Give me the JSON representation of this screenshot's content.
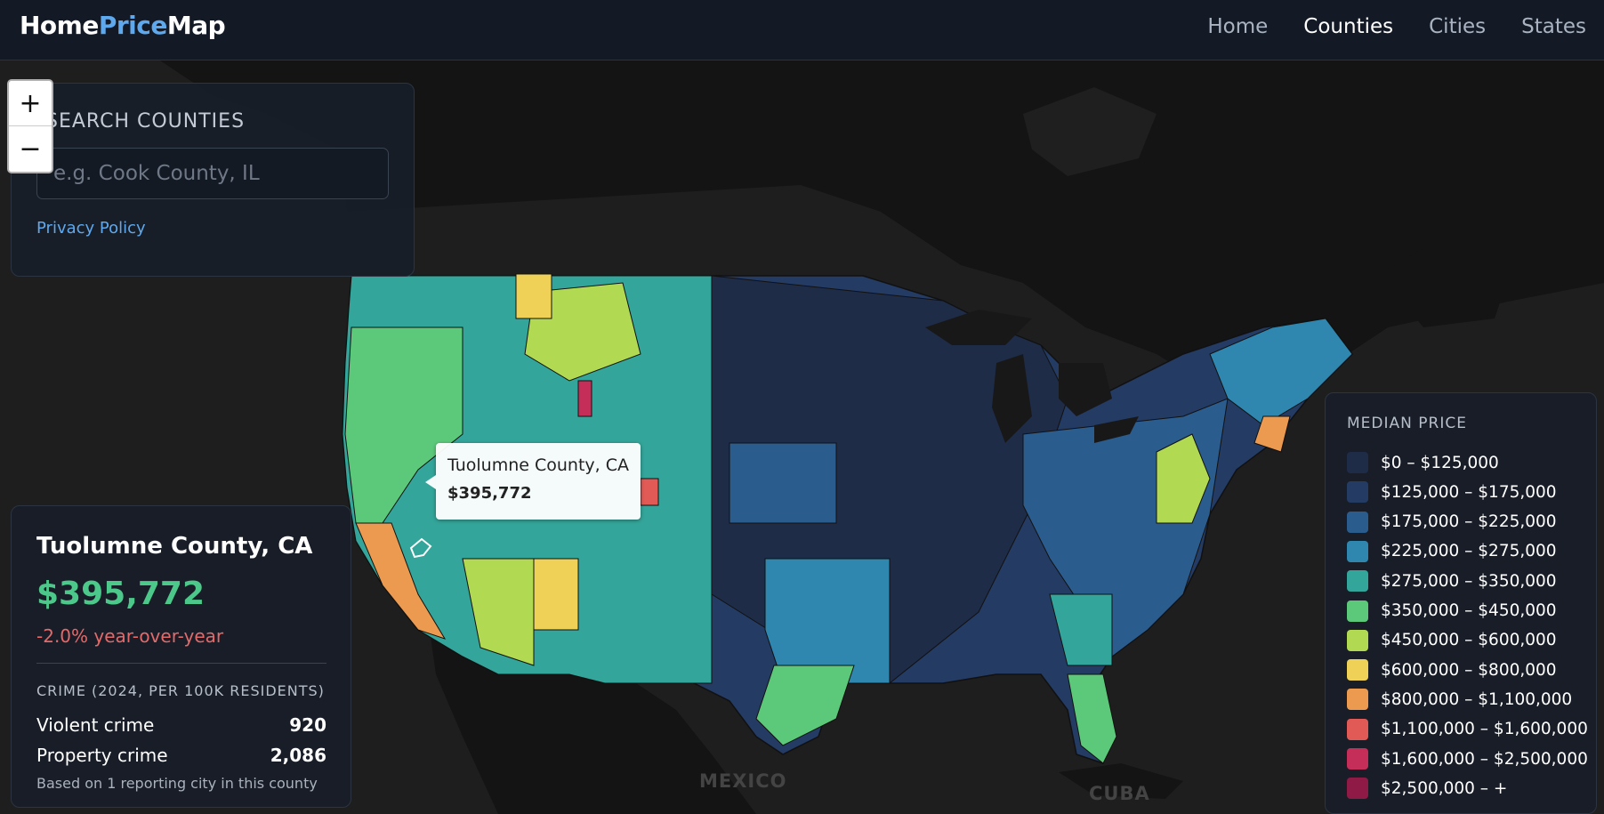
{
  "brand": {
    "part1": "Home",
    "part2": "Price",
    "part3": "Map"
  },
  "nav": {
    "home": "Home",
    "counties": "Counties",
    "cities": "Cities",
    "states": "States"
  },
  "search": {
    "title": "SEARCH COUNTIES",
    "placeholder": "e.g. Cook County, IL",
    "value": "",
    "privacy_label": "Privacy Policy"
  },
  "zoom": {
    "in_label": "+",
    "out_label": "−"
  },
  "tooltip": {
    "name": "Tuolumne County, CA",
    "price": "$395,772"
  },
  "info": {
    "name": "Tuolumne County, CA",
    "price": "$395,772",
    "change": "-2.0% year-over-year",
    "crime_title": "CRIME (2024, PER 100K RESIDENTS)",
    "violent_label": "Violent crime",
    "violent_value": "920",
    "property_label": "Property crime",
    "property_value": "2,086",
    "note": "Based on 1 reporting city in this county"
  },
  "map_labels": {
    "mexico": "MEXICO",
    "cuba": "CUBA"
  },
  "legend": {
    "title": "MEDIAN PRICE",
    "items": [
      {
        "label": "$0 – $125,000",
        "color": "#1e2c48"
      },
      {
        "label": "$125,000 – $175,000",
        "color": "#243b63"
      },
      {
        "label": "$175,000 – $225,000",
        "color": "#2b5c8e"
      },
      {
        "label": "$225,000 – $275,000",
        "color": "#2f87b0"
      },
      {
        "label": "$275,000 – $350,000",
        "color": "#34a59a"
      },
      {
        "label": "$350,000 – $450,000",
        "color": "#5cc97a"
      },
      {
        "label": "$450,000 – $600,000",
        "color": "#b2d952"
      },
      {
        "label": "$600,000 – $800,000",
        "color": "#efd158"
      },
      {
        "label": "$800,000 – $1,100,000",
        "color": "#ec9a4f"
      },
      {
        "label": "$1,100,000 – $1,600,000",
        "color": "#e15a56"
      },
      {
        "label": "$1,600,000 – $2,500,000",
        "color": "#c62e5a"
      },
      {
        "label": "$2,500,000 – +",
        "color": "#8e1a45"
      }
    ]
  }
}
